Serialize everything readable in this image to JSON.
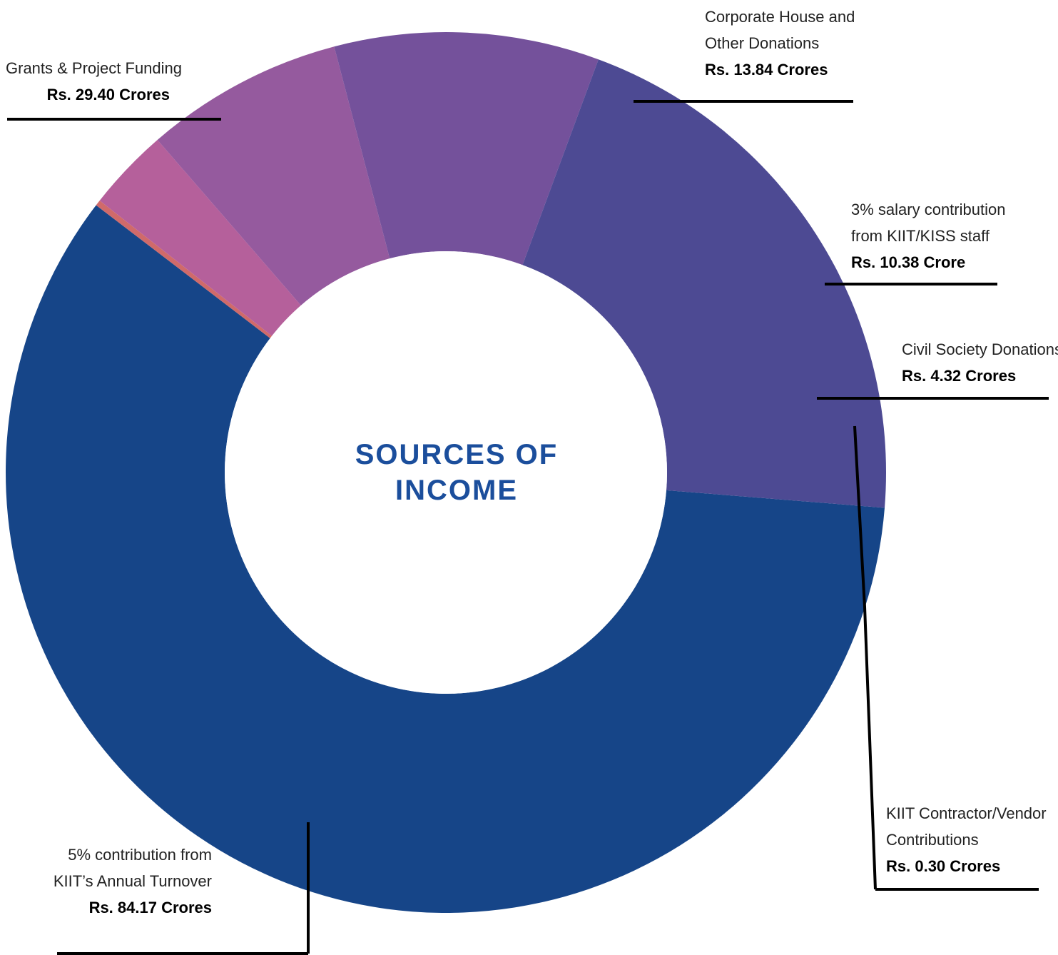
{
  "chart_data": {
    "type": "pie",
    "donut": true,
    "title_lines": [
      "SOURCES OF",
      "INCOME"
    ],
    "title_color": "#1b4e9c",
    "slices": [
      {
        "label_lines": [
          "5% contribution from",
          "KIIT’s Annual Turnover"
        ],
        "value_text": "Rs. 84.17 Crores",
        "value": 84.17,
        "color": "#164588"
      },
      {
        "label_lines": [
          "KIIT Contractor/Vendor",
          "Contributions"
        ],
        "value_text": "Rs. 0.30 Crores",
        "value": 0.3,
        "color": "#d06a6a"
      },
      {
        "label_lines": [
          "Civil Society Donations"
        ],
        "value_text": "Rs. 4.32 Crores",
        "value": 4.32,
        "color": "#b5609b"
      },
      {
        "label_lines": [
          "3% salary contribution",
          "from KIIT/KISS  staff"
        ],
        "value_text": "Rs. 10.38 Crore",
        "value": 10.38,
        "color": "#955a9e"
      },
      {
        "label_lines": [
          "Corporate House and",
          "Other Donations"
        ],
        "value_text": "Rs. 13.84 Crores",
        "value": 13.84,
        "color": "#74519b"
      },
      {
        "label_lines": [
          "Grants & Project Funding"
        ],
        "value_text": "Rs. 29.40 Crores",
        "value": 29.4,
        "color": "#4d4a93"
      }
    ]
  }
}
